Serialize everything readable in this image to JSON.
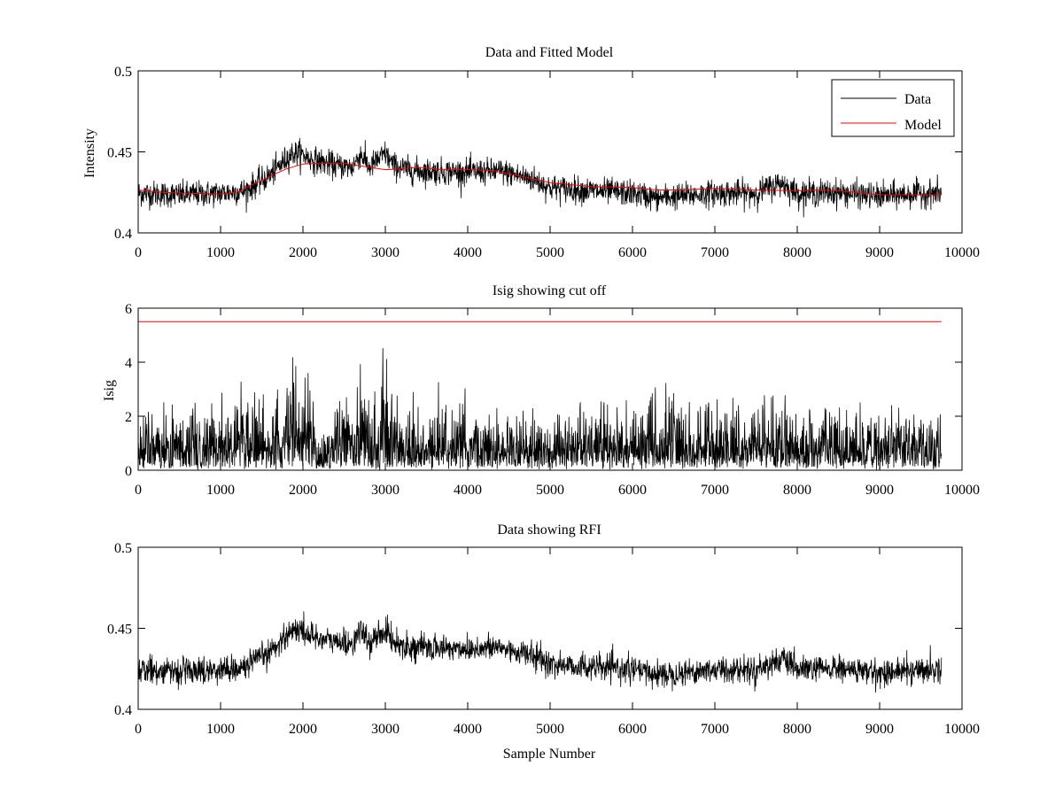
{
  "chart_data": [
    {
      "type": "line",
      "title": "Data and Fitted Model",
      "xlabel": "",
      "ylabel": "Intensity",
      "xlim": [
        0,
        10000
      ],
      "ylim": [
        0.4,
        0.5
      ],
      "xticks": [
        "0",
        "1000",
        "2000",
        "3000",
        "4000",
        "5000",
        "6000",
        "7000",
        "8000",
        "9000",
        "10000"
      ],
      "yticks": [
        "0.4",
        "0.45",
        "0.5"
      ],
      "legend": {
        "position": "top-right",
        "entries": [
          "Data",
          "Model"
        ]
      },
      "series": [
        {
          "name": "Data",
          "color": "#000000",
          "noise": 0.004,
          "baseline_x": [
            0,
            500,
            1000,
            1300,
            1600,
            1850,
            1950,
            2100,
            2400,
            2600,
            2700,
            2800,
            2900,
            3000,
            3100,
            3300,
            3500,
            4000,
            4400,
            4800,
            5000,
            5500,
            6000,
            6300,
            6500,
            7000,
            7500,
            7800,
            8000,
            8500,
            9000,
            9500,
            9750
          ],
          "baseline_y": [
            0.4245,
            0.4235,
            0.4245,
            0.426,
            0.4355,
            0.4485,
            0.4495,
            0.4455,
            0.4415,
            0.4405,
            0.449,
            0.4405,
            0.4445,
            0.449,
            0.4415,
            0.4385,
            0.438,
            0.4375,
            0.438,
            0.433,
            0.428,
            0.426,
            0.4245,
            0.4215,
            0.4225,
            0.4245,
            0.4245,
            0.431,
            0.4245,
            0.425,
            0.4225,
            0.4245,
            0.4245
          ]
        },
        {
          "name": "Model",
          "color": "#ff0000",
          "x": [
            0,
            300,
            600,
            1000,
            1200,
            1400,
            1600,
            1800,
            2000,
            2200,
            2500,
            2800,
            3000,
            3200,
            3400,
            3700,
            4000,
            4300,
            4600,
            5000,
            5500,
            6000,
            6300,
            6600,
            7000,
            7500,
            8000,
            8300,
            8600,
            9000,
            9400,
            9750
          ],
          "y": [
            0.4265,
            0.425,
            0.4245,
            0.424,
            0.425,
            0.43,
            0.435,
            0.4395,
            0.4425,
            0.443,
            0.443,
            0.4405,
            0.439,
            0.4395,
            0.4405,
            0.439,
            0.439,
            0.4385,
            0.4355,
            0.431,
            0.4285,
            0.428,
            0.4265,
            0.4265,
            0.4275,
            0.4265,
            0.426,
            0.4265,
            0.4255,
            0.4235,
            0.4235,
            0.4235
          ]
        }
      ]
    },
    {
      "type": "line",
      "title": "Isig showing cut off",
      "xlabel": "",
      "ylabel": "Isig",
      "xlim": [
        0,
        10000
      ],
      "ylim": [
        0,
        6
      ],
      "xticks": [
        "0",
        "1000",
        "2000",
        "3000",
        "4000",
        "5000",
        "6000",
        "7000",
        "8000",
        "9000",
        "10000"
      ],
      "yticks": [
        "0",
        "2",
        "4",
        "6"
      ],
      "series": [
        {
          "color": "#000000",
          "envelope_x": [
            0,
            500,
            1000,
            1400,
            1600,
            1800,
            1870,
            1950,
            2050,
            2200,
            2500,
            2650,
            2700,
            2800,
            2900,
            2980,
            3050,
            3200,
            3500,
            4000,
            4500,
            5000,
            5500,
            6000,
            6300,
            6500,
            7000,
            7500,
            7800,
            8000,
            8500,
            9000,
            9500,
            9750
          ],
          "envelope_y": [
            1.6,
            1.6,
            1.6,
            1.9,
            1.9,
            2.3,
            3.6,
            2.8,
            2.4,
            1.5,
            1.5,
            1.9,
            2.6,
            1.8,
            1.8,
            3.0,
            2.2,
            1.5,
            1.6,
            1.6,
            1.6,
            1.5,
            1.6,
            1.8,
            2.0,
            1.8,
            1.6,
            1.6,
            2.0,
            1.6,
            1.6,
            1.5,
            1.6,
            1.6
          ]
        },
        {
          "color": "#ff0000",
          "x": [
            0,
            9750
          ],
          "y": [
            5.5,
            5.5
          ]
        }
      ]
    },
    {
      "type": "line",
      "title": "Data showing RFI",
      "xlabel": "Sample Number",
      "ylabel": "",
      "xlim": [
        0,
        10000
      ],
      "ylim": [
        0.4,
        0.5
      ],
      "xticks": [
        "0",
        "1000",
        "2000",
        "3000",
        "4000",
        "5000",
        "6000",
        "7000",
        "8000",
        "9000",
        "10000"
      ],
      "yticks": [
        "0.4",
        "0.45",
        "0.5"
      ],
      "series": [
        {
          "color": "#000000",
          "noise": 0.004,
          "baseline_x": [
            0,
            500,
            1000,
            1300,
            1600,
            1850,
            1950,
            2100,
            2400,
            2600,
            2700,
            2800,
            2900,
            3000,
            3100,
            3300,
            3500,
            4000,
            4400,
            4800,
            5000,
            5500,
            6000,
            6300,
            6500,
            7000,
            7500,
            7800,
            8000,
            8500,
            9000,
            9500,
            9750
          ],
          "baseline_y": [
            0.4245,
            0.4235,
            0.4245,
            0.426,
            0.4355,
            0.4485,
            0.4495,
            0.4455,
            0.4415,
            0.4405,
            0.449,
            0.4405,
            0.4445,
            0.449,
            0.4415,
            0.4385,
            0.438,
            0.4375,
            0.438,
            0.433,
            0.428,
            0.426,
            0.4245,
            0.4215,
            0.4225,
            0.4245,
            0.4245,
            0.431,
            0.4245,
            0.425,
            0.4225,
            0.4245,
            0.4245
          ]
        }
      ]
    }
  ]
}
